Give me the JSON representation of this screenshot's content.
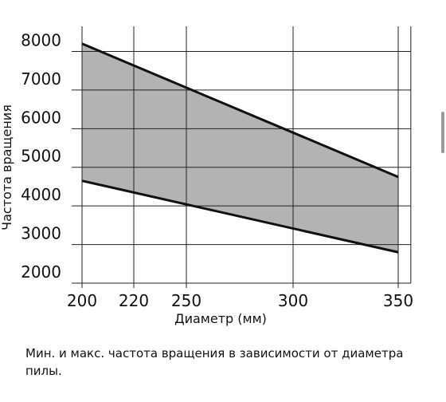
{
  "chart_data": {
    "type": "area-band",
    "ylabel": "Частота вращения",
    "xlabel": "Диаметр (мм)",
    "caption": "Мин. и макс. частота вращения в зависимости от диаметра пилы.",
    "xlim": [
      200,
      356
    ],
    "ylim": [
      2000,
      8650
    ],
    "xticks": [
      200,
      220,
      250,
      300,
      350
    ],
    "yticks": [
      2000,
      3000,
      4000,
      5000,
      6000,
      7000,
      8000
    ],
    "grid": true,
    "fill_color": "#b3b3b3",
    "series": [
      {
        "name": "Макс.",
        "color": "#111111",
        "x": [
          200,
          350
        ],
        "values": [
          8200,
          4750
        ]
      },
      {
        "name": "Мин.",
        "color": "#111111",
        "x": [
          200,
          350
        ],
        "values": [
          4650,
          2800
        ]
      }
    ]
  }
}
